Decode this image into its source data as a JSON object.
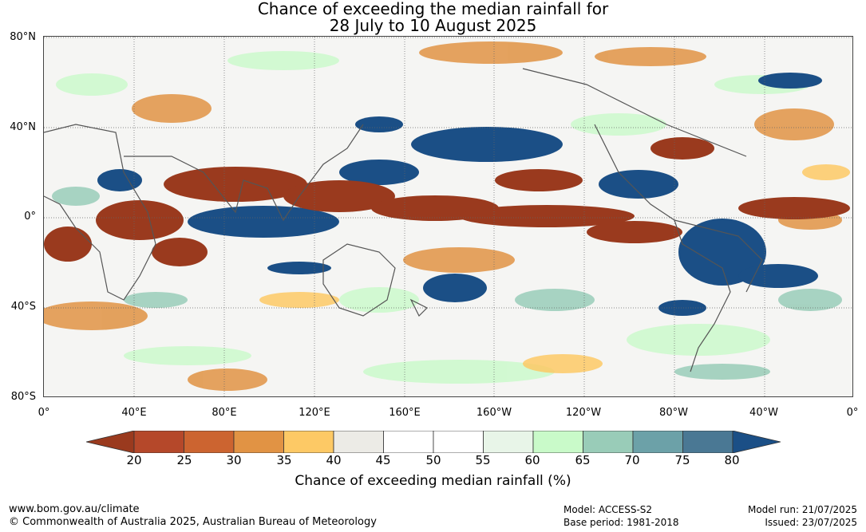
{
  "title_line1": "Chance of exceeding the median rainfall for",
  "title_line2": "28 July to 10 August 2025",
  "lat_labels": [
    "80°N",
    "40°N",
    "0°",
    "40°S",
    "80°S"
  ],
  "lon_labels": [
    "0°",
    "40°E",
    "80°E",
    "120°E",
    "160°E",
    "160°W",
    "120°W",
    "80°W",
    "40°W",
    "0°"
  ],
  "colorbar": {
    "title": "Chance of exceeding median rainfall (%)",
    "ticks": [
      "20",
      "25",
      "30",
      "35",
      "40",
      "45",
      "50",
      "55",
      "60",
      "65",
      "70",
      "75",
      "80"
    ],
    "low_color": "#9a3a1e",
    "high_color": "#1b4f86",
    "colors": [
      "#b5482a",
      "#cc6430",
      "#e19344",
      "#fdc965",
      "#ecebe6",
      "#ffffff",
      "#ffffff",
      "#e8f5e8",
      "#c9fac9",
      "#99ccb8",
      "#6ca1a8",
      "#4a7894"
    ]
  },
  "footer": {
    "url": "www.bom.gov.au/climate",
    "copyright": "© Commonwealth of Australia 2025, Australian Bureau of Meteorology",
    "model": "Model: ACCESS-S2",
    "base_period": "Base period: 1981-2018",
    "model_run": "Model run: 21/07/2025",
    "issued": "Issued: 23/07/2025"
  }
}
